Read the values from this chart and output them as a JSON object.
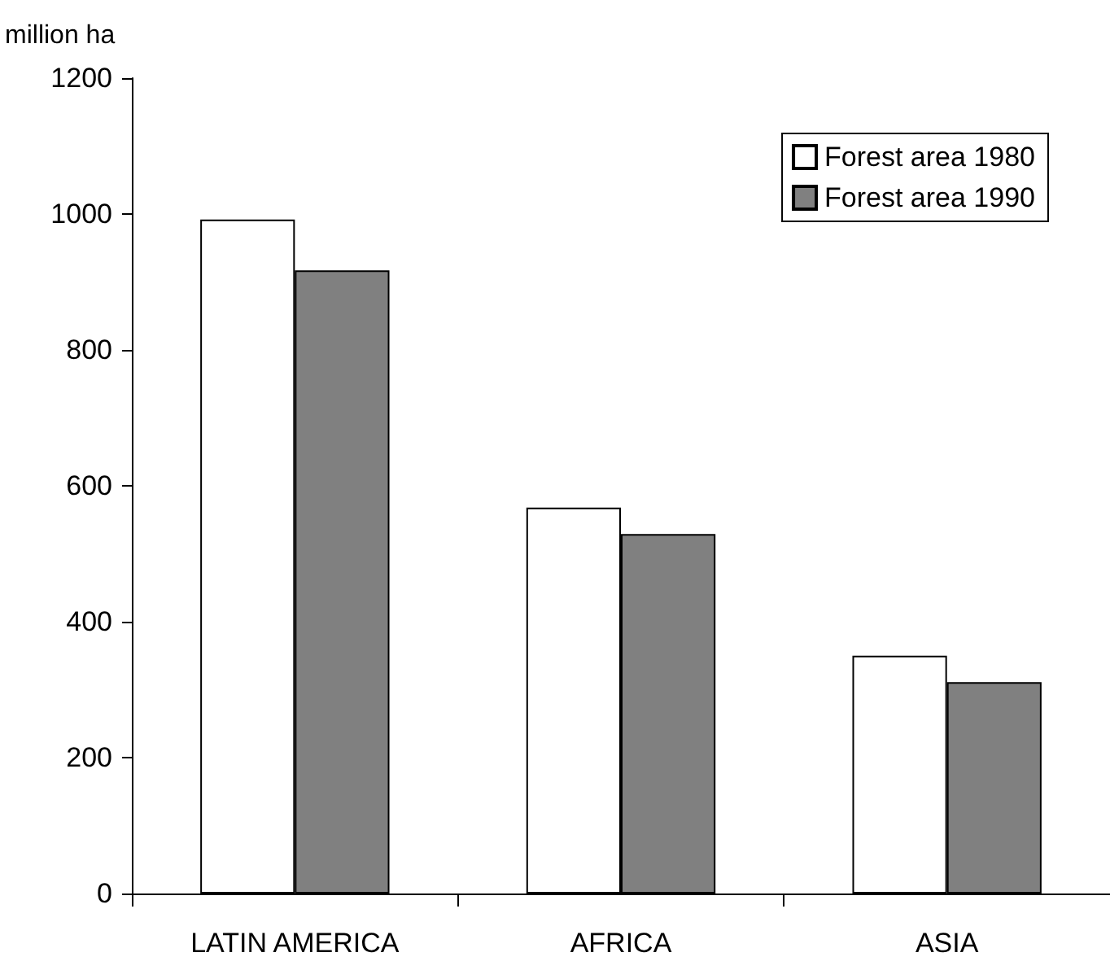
{
  "chart_data": {
    "type": "bar",
    "ylabel": "million ha",
    "categories": [
      "LATIN AMERICA",
      "AFRICA",
      "ASIA"
    ],
    "series": [
      {
        "name": "Forest area 1980",
        "color": "#ffffff",
        "values": [
          992,
          568,
          350
        ]
      },
      {
        "name": "Forest area 1990",
        "color": "#808080",
        "values": [
          917,
          529,
          311
        ]
      }
    ],
    "ylim": [
      0,
      1200
    ],
    "yticks": [
      0,
      200,
      400,
      600,
      800,
      1000,
      1200
    ],
    "grid": false,
    "legend": "top right"
  }
}
